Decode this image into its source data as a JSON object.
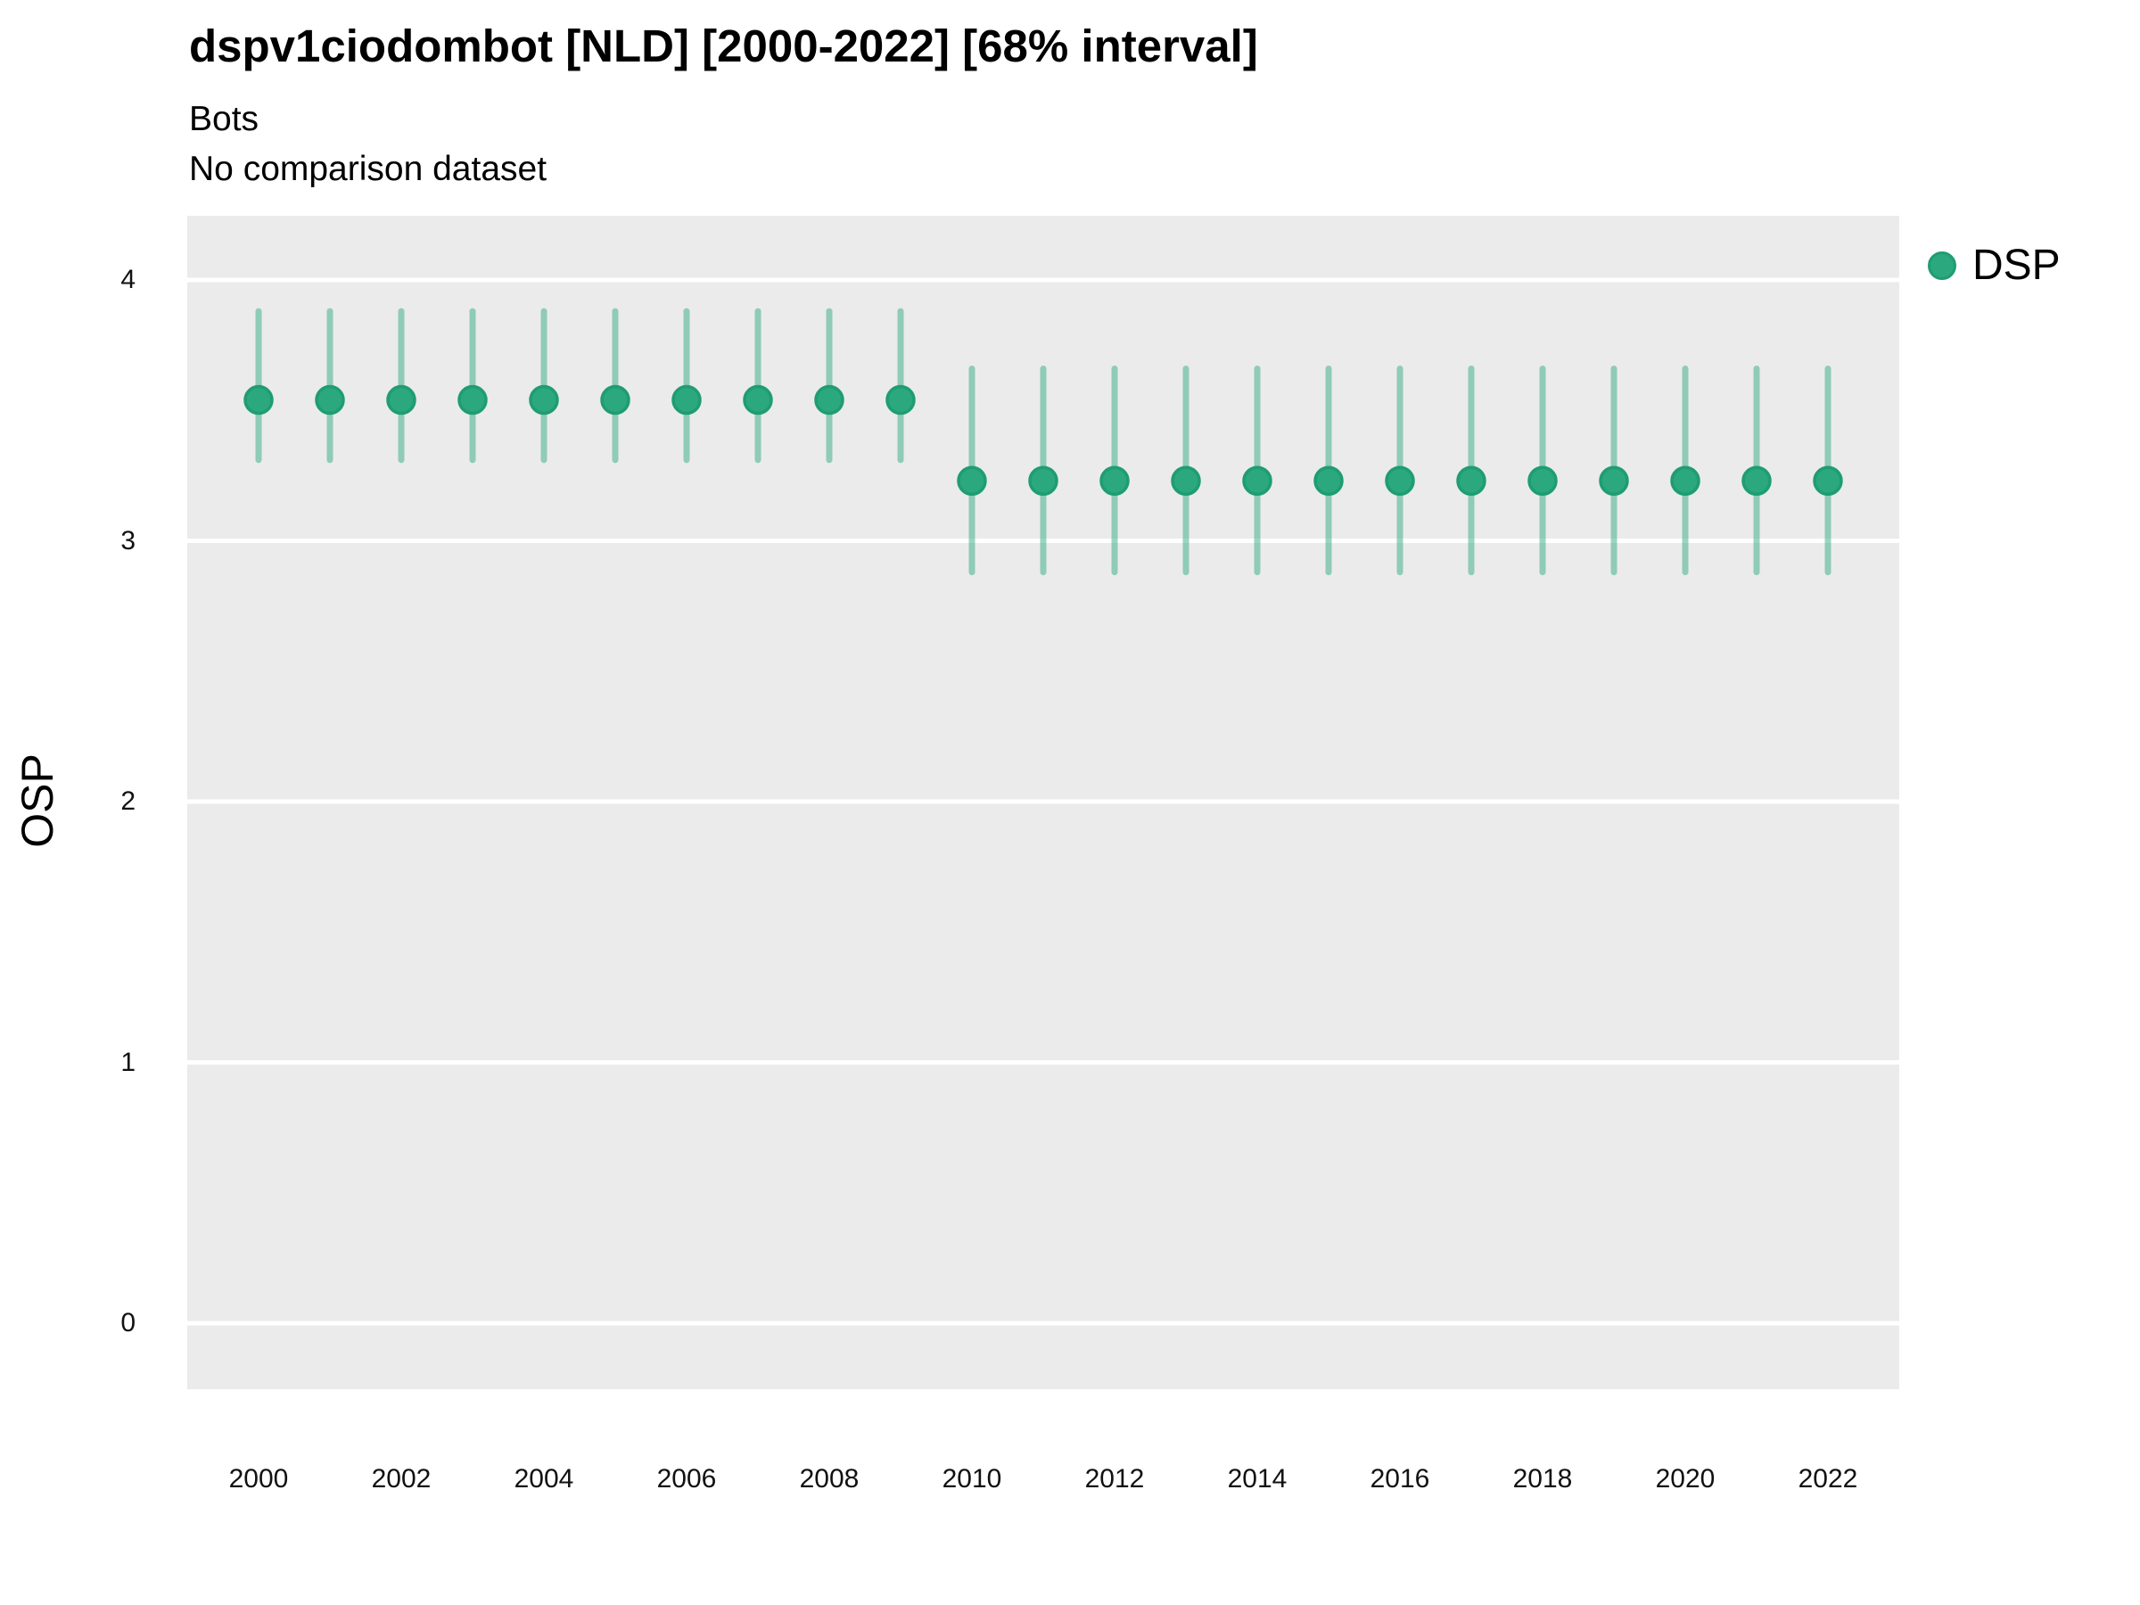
{
  "header": {
    "title": "dspv1ciodombot [NLD] [2000-2022] [68% interval]",
    "subtitle": "Bots",
    "comparison_note": "No comparison dataset"
  },
  "legend": {
    "items": [
      {
        "label": "DSP",
        "color": "#2BA87D"
      }
    ]
  },
  "y_axis": {
    "label": "OSP",
    "ticks": [
      0,
      1,
      2,
      3,
      4
    ]
  },
  "x_axis": {
    "ticks": [
      2000,
      2002,
      2004,
      2006,
      2008,
      2010,
      2012,
      2014,
      2016,
      2018,
      2020,
      2022
    ]
  },
  "chart_data": {
    "type": "scatter",
    "title": "dspv1ciodombot [NLD] [2000-2022] [68% interval]",
    "subtitle": [
      "Bots",
      "No comparison dataset"
    ],
    "xlabel": "",
    "ylabel": "OSP",
    "interval_label": "68% interval",
    "legend_position": "right",
    "grid": "horizontal-major-white",
    "xlim": [
      2000,
      2022
    ],
    "ylim": [
      0,
      4
    ],
    "x": [
      2000,
      2001,
      2002,
      2003,
      2004,
      2005,
      2006,
      2007,
      2008,
      2009,
      2010,
      2011,
      2012,
      2013,
      2014,
      2015,
      2016,
      2017,
      2018,
      2019,
      2020,
      2021,
      2022
    ],
    "series": [
      {
        "name": "DSP",
        "values": [
          3.54,
          3.54,
          3.54,
          3.54,
          3.54,
          3.54,
          3.54,
          3.54,
          3.54,
          3.54,
          3.23,
          3.23,
          3.23,
          3.23,
          3.23,
          3.23,
          3.23,
          3.23,
          3.23,
          3.23,
          3.23,
          3.23,
          3.23
        ],
        "lower_68": [
          3.31,
          3.31,
          3.31,
          3.31,
          3.31,
          3.31,
          3.31,
          3.31,
          3.31,
          3.31,
          2.88,
          2.88,
          2.88,
          2.88,
          2.88,
          2.88,
          2.88,
          2.88,
          2.88,
          2.88,
          2.88,
          2.88,
          2.88
        ],
        "upper_68": [
          3.88,
          3.88,
          3.88,
          3.88,
          3.88,
          3.88,
          3.88,
          3.88,
          3.88,
          3.88,
          3.66,
          3.66,
          3.66,
          3.66,
          3.66,
          3.66,
          3.66,
          3.66,
          3.66,
          3.66,
          3.66,
          3.66,
          3.66
        ]
      }
    ]
  },
  "colors": {
    "panel_bg": "#EBEBEB",
    "gridline": "#FFFFFF",
    "marker_fill": "#2BA87D",
    "marker_stroke": "#1F9D72",
    "errorbar": "rgba(42,168,125,0.48)",
    "text": "#000000"
  }
}
